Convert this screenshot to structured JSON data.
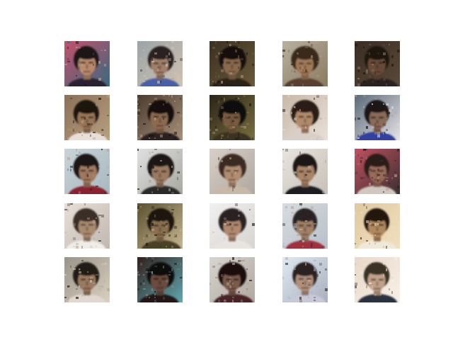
{
  "figure": {
    "rows": 5,
    "cols": 5,
    "background": "#ffffff",
    "description_tag": "grid-of-generated-face-samples"
  },
  "samples": [
    {
      "bg": "#c4506a",
      "bg2": "#3a6a80",
      "skin": "#b88a6c",
      "hair": "#1e1614",
      "cloth": "#2a2030",
      "noise": 0.35
    },
    {
      "bg": "#9aa4a8",
      "bg2": "#d0c2b0",
      "skin": "#a0806a",
      "hair": "#2a2422",
      "cloth": "#4860a8",
      "noise": 0.4
    },
    {
      "bg": "#3a3022",
      "bg2": "#6a5a3a",
      "skin": "#8a6a50",
      "hair": "#14100e",
      "cloth": "#2a2018",
      "noise": 0.45
    },
    {
      "bg": "#b8b0a0",
      "bg2": "#8a7a60",
      "skin": "#a07a58",
      "hair": "#3a2a1c",
      "cloth": "#5a4030",
      "noise": 0.3
    },
    {
      "bg": "#3a2c22",
      "bg2": "#5a4a3a",
      "skin": "#6a4c38",
      "hair": "#1a1410",
      "cloth": "#2a2420",
      "noise": 0.4
    },
    {
      "bg": "#8a7058",
      "bg2": "#b8a080",
      "skin": "#9a7658",
      "hair": "#1c1410",
      "cloth": "#e8e0d8",
      "noise": 0.3
    },
    {
      "bg": "#4a3c30",
      "bg2": "#a89078",
      "skin": "#8c6a50",
      "hair": "#14100c",
      "cloth": "#2c2420",
      "noise": 0.45
    },
    {
      "bg": "#2a2418",
      "bg2": "#7a7040",
      "skin": "#7a5a40",
      "hair": "#100c08",
      "cloth": "#3a3020",
      "noise": 0.45
    },
    {
      "bg": "#c8b8a8",
      "bg2": "#e8e0d8",
      "skin": "#b08a6a",
      "hair": "#2a1c14",
      "cloth": "#d8d0c8",
      "noise": 0.25
    },
    {
      "bg": "#5a6a78",
      "bg2": "#e8e4e8",
      "skin": "#8a6a58",
      "hair": "#1a1818",
      "cloth": "#3040a0",
      "noise": 0.45
    },
    {
      "bg": "#c8d4d8",
      "bg2": "#a8b8c0",
      "skin": "#a07a60",
      "hair": "#1c1614",
      "cloth": "#8a2030",
      "noise": 0.25
    },
    {
      "bg": "#e0e0e0",
      "bg2": "#a8a8a0",
      "skin": "#9a7a60",
      "hair": "#1a1614",
      "cloth": "#2a2a2a",
      "noise": 0.3
    },
    {
      "bg": "#d8d0c8",
      "bg2": "#b0a8a0",
      "skin": "#b08c70",
      "hair": "#3a2a20",
      "cloth": "#c8b8a8",
      "noise": 0.15
    },
    {
      "bg": "#e8e4e0",
      "bg2": "#c8c0b8",
      "skin": "#a88468",
      "hair": "#1e1814",
      "cloth": "#1e1c20",
      "noise": 0.15
    },
    {
      "bg": "#c05060",
      "bg2": "#3a3030",
      "skin": "#9a6a58",
      "hair": "#2a1c18",
      "cloth": "#d0c8c0",
      "noise": 0.4
    },
    {
      "bg": "#e8e0d8",
      "bg2": "#c0b8b0",
      "skin": "#a88a70",
      "hair": "#3a2e28",
      "cloth": "#f0ece8",
      "noise": 0.3
    },
    {
      "bg": "#5a5030",
      "bg2": "#c8b890",
      "skin": "#8a7050",
      "hair": "#1a1410",
      "cloth": "#4a4028",
      "noise": 0.4
    },
    {
      "bg": "#f0f0f0",
      "bg2": "#d8d4d0",
      "skin": "#b08a70",
      "hair": "#2c2420",
      "cloth": "#e8e4e0",
      "noise": 0.15
    },
    {
      "bg": "#d8dce0",
      "bg2": "#b8c0c8",
      "skin": "#a08068",
      "hair": "#2a2420",
      "cloth": "#a03040",
      "noise": 0.35
    },
    {
      "bg": "#e0c8a0",
      "bg2": "#f0e0c0",
      "skin": "#b08860",
      "hair": "#241810",
      "cloth": "#f0e8d8",
      "noise": 0.25
    },
    {
      "bg": "#9a9488",
      "bg2": "#d8d0c0",
      "skin": "#9a7a60",
      "hair": "#221a14",
      "cloth": "#e0d8d0",
      "noise": 0.35
    },
    {
      "bg": "#30201c",
      "bg2": "#60a8b0",
      "skin": "#6a4c3c",
      "hair": "#0e0a08",
      "cloth": "#201818",
      "noise": 0.45
    },
    {
      "bg": "#d8d4d0",
      "bg2": "#b0a8a0",
      "skin": "#7a5a48",
      "hair": "#1a1010",
      "cloth": "#4a2028",
      "noise": 0.4
    },
    {
      "bg": "#e0e8f0",
      "bg2": "#a8b0c0",
      "skin": "#b0907a",
      "hair": "#2a2020",
      "cloth": "#c8c8d8",
      "noise": 0.35
    },
    {
      "bg": "#e8d8c8",
      "bg2": "#f8f0e8",
      "skin": "#c0a088",
      "hair": "#3a3028",
      "cloth": "#2a3040",
      "noise": 0.25
    }
  ]
}
